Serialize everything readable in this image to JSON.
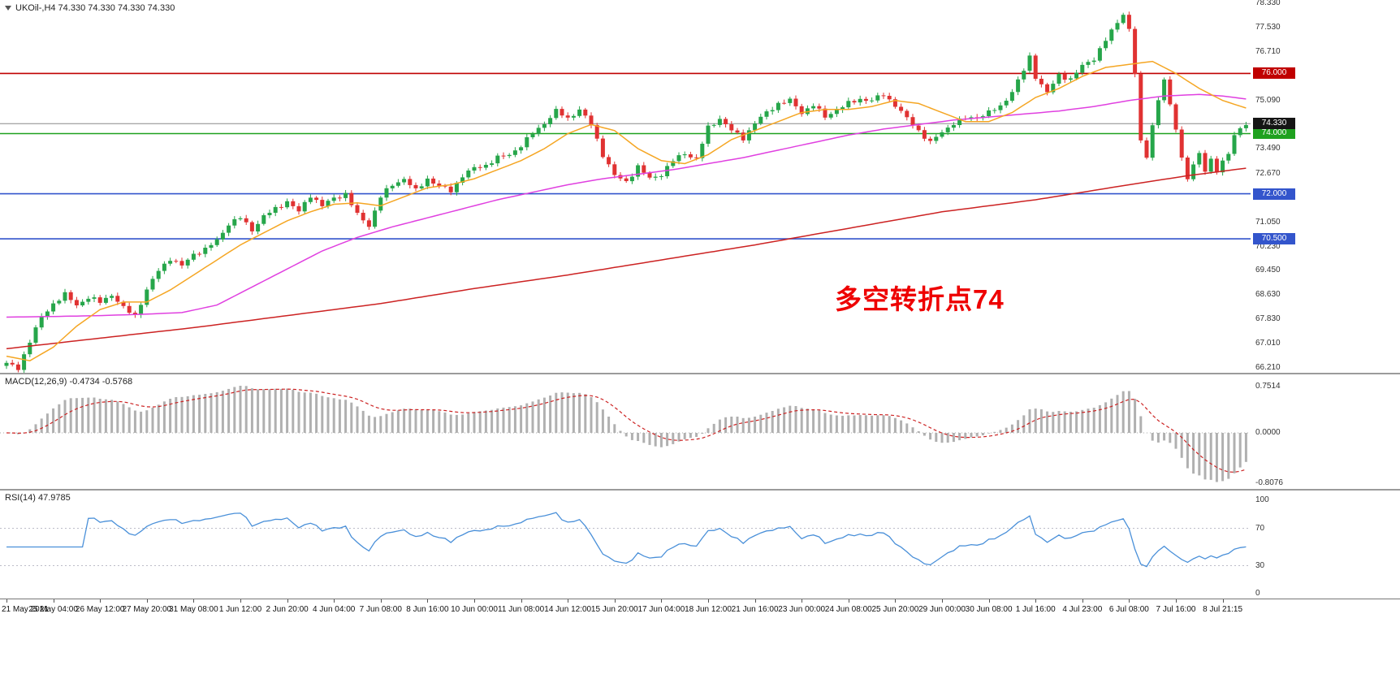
{
  "window": {
    "bg": "#ffffff"
  },
  "header": {
    "dropdown_icon": "dropdown-triangle",
    "title": "UKOil-,H4 74.330 74.330 74.330 74.330",
    "symbol": "UKOil-",
    "timeframe": "H4",
    "ohlc": {
      "open": "74.330",
      "high": "74.330",
      "low": "74.330",
      "close": "74.330"
    }
  },
  "annotation": {
    "text": "多空转折点74",
    "color": "#ee0000"
  },
  "macd": {
    "label": "MACD(12,26,9) -0.4734 -0.5768"
  },
  "rsi": {
    "label": "RSI(14) 47.9785"
  },
  "time_axis": {
    "labels": [
      "21 May 2021",
      "25 May 04:00",
      "26 May 12:00",
      "27 May 20:00",
      "31 May 08:00",
      "1 Jun 12:00",
      "2 Jun 20:00",
      "4 Jun 04:00",
      "7 Jun 08:00",
      "8 Jun 16:00",
      "10 Jun 00:00",
      "11 Jun 08:00",
      "14 Jun 12:00",
      "15 Jun 20:00",
      "17 Jun 04:00",
      "18 Jun 12:00",
      "21 Jun 16:00",
      "23 Jun 00:00",
      "24 Jun 08:00",
      "25 Jun 20:00",
      "29 Jun 00:00",
      "30 Jun 08:00",
      "1 Jul 16:00",
      "4 Jul 23:00",
      "6 Jul 08:00",
      "7 Jul 16:00",
      "8 Jul 21:15"
    ]
  },
  "chart_data": [
    {
      "type": "candlestick",
      "symbol": "UKOil-",
      "timeframe": "H4",
      "bars": 213,
      "bars_per_x_label": 8,
      "y_range": [
        66.05,
        78.44
      ],
      "y_ticks": [
        "78.330",
        "77.530",
        "76.710",
        "75.090",
        "73.490",
        "72.670",
        "71.050",
        "70.230",
        "69.450",
        "68.630",
        "67.830",
        "67.010",
        "66.210"
      ],
      "current_price": {
        "value": 74.33,
        "label": "74.330",
        "line_color": "#888888",
        "badge_bg": "#151515",
        "badge_fg": "#ffffff"
      },
      "hlines": [
        {
          "value": 76.0,
          "label": "76.000",
          "color": "#c00000"
        },
        {
          "value": 74.0,
          "label": "74.000",
          "color": "#1fa11f"
        },
        {
          "value": 72.0,
          "label": "72.000",
          "color": "#3355cc"
        },
        {
          "value": 70.5,
          "label": "70.500",
          "color": "#3355cc"
        }
      ],
      "up_color": "#26a64a",
      "down_color": "#e03232",
      "close_path_anchors": [
        [
          0,
          66.35
        ],
        [
          2,
          66.2
        ],
        [
          4,
          67.1
        ],
        [
          6,
          67.9
        ],
        [
          8,
          68.35
        ],
        [
          10,
          68.65
        ],
        [
          12,
          68.3
        ],
        [
          14,
          68.55
        ],
        [
          16,
          68.4
        ],
        [
          18,
          68.65
        ],
        [
          20,
          68.2
        ],
        [
          22,
          67.95
        ],
        [
          24,
          68.8
        ],
        [
          26,
          69.45
        ],
        [
          28,
          69.85
        ],
        [
          30,
          69.6
        ],
        [
          32,
          70.0
        ],
        [
          34,
          70.15
        ],
        [
          36,
          70.45
        ],
        [
          38,
          71.0
        ],
        [
          40,
          71.2
        ],
        [
          42,
          70.8
        ],
        [
          44,
          71.25
        ],
        [
          46,
          71.5
        ],
        [
          48,
          71.75
        ],
        [
          50,
          71.4
        ],
        [
          52,
          71.95
        ],
        [
          54,
          71.6
        ],
        [
          56,
          71.85
        ],
        [
          58,
          72.0
        ],
        [
          60,
          71.3
        ],
        [
          62,
          70.95
        ],
        [
          64,
          71.9
        ],
        [
          66,
          72.3
        ],
        [
          68,
          72.5
        ],
        [
          70,
          72.1
        ],
        [
          72,
          72.5
        ],
        [
          74,
          72.25
        ],
        [
          76,
          72.1
        ],
        [
          78,
          72.6
        ],
        [
          80,
          72.85
        ],
        [
          82,
          72.95
        ],
        [
          84,
          73.2
        ],
        [
          86,
          73.3
        ],
        [
          88,
          73.6
        ],
        [
          90,
          74.0
        ],
        [
          92,
          74.35
        ],
        [
          94,
          74.75
        ],
        [
          96,
          74.5
        ],
        [
          98,
          74.8
        ],
        [
          100,
          74.3
        ],
        [
          102,
          73.3
        ],
        [
          104,
          72.6
        ],
        [
          106,
          72.4
        ],
        [
          108,
          72.9
        ],
        [
          110,
          72.5
        ],
        [
          112,
          72.65
        ],
        [
          114,
          73.1
        ],
        [
          116,
          73.35
        ],
        [
          118,
          73.15
        ],
        [
          120,
          74.2
        ],
        [
          122,
          74.5
        ],
        [
          124,
          74.1
        ],
        [
          126,
          73.85
        ],
        [
          128,
          74.35
        ],
        [
          130,
          74.7
        ],
        [
          132,
          75.0
        ],
        [
          134,
          75.1
        ],
        [
          136,
          74.7
        ],
        [
          138,
          74.95
        ],
        [
          140,
          74.55
        ],
        [
          142,
          74.8
        ],
        [
          144,
          75.0
        ],
        [
          146,
          75.15
        ],
        [
          148,
          75.1
        ],
        [
          150,
          75.3
        ],
        [
          152,
          74.95
        ],
        [
          154,
          74.5
        ],
        [
          156,
          74.1
        ],
        [
          158,
          73.7
        ],
        [
          160,
          74.05
        ],
        [
          162,
          74.35
        ],
        [
          164,
          74.5
        ],
        [
          166,
          74.55
        ],
        [
          168,
          74.7
        ],
        [
          170,
          74.9
        ],
        [
          172,
          75.4
        ],
        [
          174,
          76.1
        ],
        [
          175,
          76.55
        ],
        [
          176,
          75.9
        ],
        [
          178,
          75.35
        ],
        [
          180,
          75.95
        ],
        [
          182,
          75.8
        ],
        [
          184,
          76.25
        ],
        [
          186,
          76.5
        ],
        [
          188,
          77.1
        ],
        [
          190,
          77.7
        ],
        [
          191,
          78.0
        ],
        [
          192,
          77.45
        ],
        [
          193,
          76.0
        ],
        [
          194,
          73.7
        ],
        [
          195,
          73.25
        ],
        [
          196,
          74.3
        ],
        [
          197,
          75.1
        ],
        [
          198,
          75.8
        ],
        [
          199,
          74.9
        ],
        [
          200,
          74.2
        ],
        [
          201,
          73.2
        ],
        [
          202,
          72.5
        ],
        [
          203,
          72.95
        ],
        [
          204,
          73.3
        ],
        [
          205,
          72.8
        ],
        [
          206,
          73.15
        ],
        [
          207,
          72.75
        ],
        [
          208,
          73.05
        ],
        [
          209,
          73.3
        ],
        [
          210,
          74.0
        ],
        [
          212,
          74.33
        ]
      ],
      "overlays": {
        "ma_fast": {
          "name": "fast-ma",
          "color": "#f5a623",
          "anchors": [
            [
              0,
              66.6
            ],
            [
              4,
              66.45
            ],
            [
              8,
              66.9
            ],
            [
              12,
              67.6
            ],
            [
              16,
              68.15
            ],
            [
              20,
              68.4
            ],
            [
              24,
              68.4
            ],
            [
              28,
              68.8
            ],
            [
              32,
              69.3
            ],
            [
              36,
              69.8
            ],
            [
              40,
              70.3
            ],
            [
              44,
              70.7
            ],
            [
              48,
              71.1
            ],
            [
              52,
              71.4
            ],
            [
              56,
              71.65
            ],
            [
              60,
              71.7
            ],
            [
              64,
              71.6
            ],
            [
              68,
              71.9
            ],
            [
              72,
              72.2
            ],
            [
              76,
              72.3
            ],
            [
              80,
              72.5
            ],
            [
              84,
              72.8
            ],
            [
              88,
              73.1
            ],
            [
              92,
              73.5
            ],
            [
              96,
              74.0
            ],
            [
              100,
              74.3
            ],
            [
              104,
              74.1
            ],
            [
              108,
              73.5
            ],
            [
              112,
              73.1
            ],
            [
              116,
              73.0
            ],
            [
              120,
              73.3
            ],
            [
              124,
              73.8
            ],
            [
              128,
              74.1
            ],
            [
              132,
              74.4
            ],
            [
              136,
              74.7
            ],
            [
              140,
              74.8
            ],
            [
              144,
              74.8
            ],
            [
              148,
              74.9
            ],
            [
              152,
              75.1
            ],
            [
              156,
              75.0
            ],
            [
              160,
              74.7
            ],
            [
              164,
              74.4
            ],
            [
              168,
              74.4
            ],
            [
              172,
              74.7
            ],
            [
              176,
              75.2
            ],
            [
              180,
              75.5
            ],
            [
              184,
              75.9
            ],
            [
              188,
              76.2
            ],
            [
              192,
              76.3
            ],
            [
              196,
              76.4
            ],
            [
              200,
              76.0
            ],
            [
              204,
              75.5
            ],
            [
              208,
              75.1
            ],
            [
              212,
              74.85
            ]
          ]
        },
        "ma_mid": {
          "name": "mid-ma",
          "color": "#e040e0",
          "anchors": [
            [
              0,
              67.9
            ],
            [
              8,
              67.92
            ],
            [
              16,
              67.95
            ],
            [
              24,
              68.0
            ],
            [
              30,
              68.05
            ],
            [
              36,
              68.3
            ],
            [
              42,
              68.9
            ],
            [
              48,
              69.5
            ],
            [
              54,
              70.1
            ],
            [
              60,
              70.55
            ],
            [
              66,
              70.9
            ],
            [
              72,
              71.2
            ],
            [
              78,
              71.5
            ],
            [
              84,
              71.8
            ],
            [
              90,
              72.05
            ],
            [
              96,
              72.3
            ],
            [
              102,
              72.5
            ],
            [
              108,
              72.65
            ],
            [
              114,
              72.8
            ],
            [
              120,
              73.0
            ],
            [
              126,
              73.2
            ],
            [
              132,
              73.45
            ],
            [
              138,
              73.7
            ],
            [
              144,
              73.95
            ],
            [
              150,
              74.15
            ],
            [
              156,
              74.3
            ],
            [
              162,
              74.45
            ],
            [
              168,
              74.55
            ],
            [
              174,
              74.65
            ],
            [
              180,
              74.75
            ],
            [
              186,
              74.9
            ],
            [
              192,
              75.1
            ],
            [
              198,
              75.25
            ],
            [
              204,
              75.3
            ],
            [
              208,
              75.25
            ],
            [
              212,
              75.15
            ]
          ]
        },
        "ma_slow": {
          "name": "slow-ma",
          "color": "#cc2222",
          "anchors": [
            [
              0,
              66.85
            ],
            [
              16,
              67.2
            ],
            [
              32,
              67.55
            ],
            [
              48,
              67.95
            ],
            [
              64,
              68.35
            ],
            [
              80,
              68.85
            ],
            [
              96,
              69.3
            ],
            [
              112,
              69.8
            ],
            [
              128,
              70.3
            ],
            [
              144,
              70.85
            ],
            [
              160,
              71.4
            ],
            [
              176,
              71.8
            ],
            [
              192,
              72.3
            ],
            [
              202,
              72.6
            ],
            [
              212,
              72.85
            ]
          ]
        }
      }
    },
    {
      "type": "macd",
      "label": "MACD(12,26,9) -0.4734 -0.5768",
      "params": [
        12,
        26,
        9
      ],
      "last_values": {
        "macd": -0.4734,
        "signal": -0.5768
      },
      "y_ticks": [
        "0.7514",
        "0.0000",
        "-0.8076"
      ],
      "histogram_color": "#b0b0b0",
      "signal_color": "#cc2222",
      "derived": "EMA(12)-EMA(26) histogram with EMA(9) signal of the candlestick closes"
    },
    {
      "type": "line",
      "name": "RSI(14)",
      "label": "RSI(14) 47.9785",
      "period": 14,
      "last_value": 47.9785,
      "levels": [
        70,
        30
      ],
      "y_ticks": [
        "100",
        "70",
        "30",
        "0"
      ],
      "range": [
        0,
        100
      ],
      "line_color": "#4a90d9"
    }
  ]
}
